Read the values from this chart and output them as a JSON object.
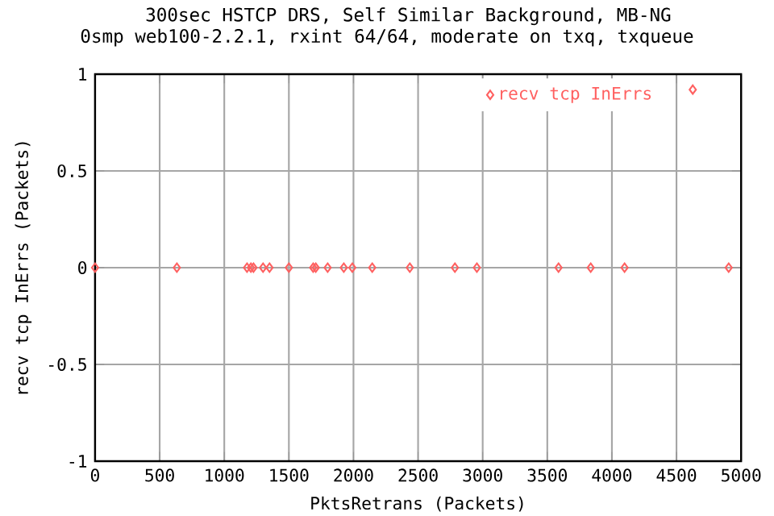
{
  "chart_data": {
    "type": "scatter",
    "title": "300sec HSTCP DRS, Self Similar Background, MB-NG",
    "subtitle": "0smp web100-2.2.1, rxint 64/64, moderate on txq, txqueue",
    "xlabel": "PktsRetrans (Packets)",
    "ylabel": "recv tcp InErrs (Packets)",
    "series": [
      {
        "name": "recv tcp InErrs",
        "color": "#ff6060",
        "x": [
          0,
          633,
          1176,
          1206,
          1226,
          1300,
          1350,
          1500,
          1688,
          1708,
          1800,
          1925,
          1991,
          2145,
          2436,
          2785,
          2955,
          3587,
          3836,
          4098,
          4626,
          4904
        ],
        "values": [
          0,
          0,
          0,
          0,
          0,
          0,
          0,
          0,
          0,
          0,
          0,
          0,
          0,
          0,
          0,
          0,
          0,
          0,
          0,
          0,
          0.92,
          0
        ]
      }
    ],
    "xlim": [
      0,
      5000
    ],
    "ylim": [
      -1,
      1
    ],
    "xticks": [
      0,
      500,
      1000,
      1500,
      2000,
      2500,
      3000,
      3500,
      4000,
      4500,
      5000
    ],
    "yticks": [
      -1,
      -0.5,
      0,
      0.5,
      1
    ],
    "grid": true,
    "legend": "top right",
    "marker": "diamond"
  }
}
